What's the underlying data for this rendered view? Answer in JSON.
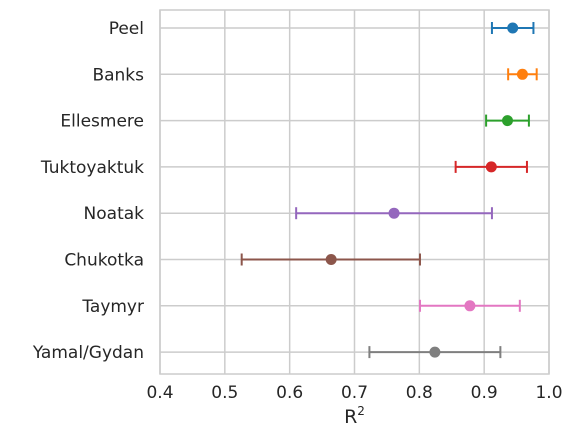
{
  "chart_data": {
    "type": "scatter",
    "orientation": "horizontal-errorbar",
    "xlabel": "R",
    "xlabel_superscript": "2",
    "xlim": [
      0.4,
      1.0
    ],
    "xticks": [
      "0.4",
      "0.5",
      "0.6",
      "0.7",
      "0.8",
      "0.9",
      "1.0"
    ],
    "grid": true,
    "categories": [
      "Peel",
      "Banks",
      "Ellesmere",
      "Tuktoyaktuk",
      "Noatak",
      "Chukotka",
      "Taymyr",
      "Yamal/Gydan"
    ],
    "points": [
      {
        "label": "Peel",
        "value": 0.944,
        "low": 0.912,
        "high": 0.976,
        "color": "#1f77b4"
      },
      {
        "label": "Banks",
        "value": 0.959,
        "low": 0.937,
        "high": 0.981,
        "color": "#ff7f0e"
      },
      {
        "label": "Ellesmere",
        "value": 0.936,
        "low": 0.903,
        "high": 0.969,
        "color": "#2ca02c"
      },
      {
        "label": "Tuktoyaktuk",
        "value": 0.911,
        "low": 0.856,
        "high": 0.966,
        "color": "#d62728"
      },
      {
        "label": "Noatak",
        "value": 0.761,
        "low": 0.61,
        "high": 0.912,
        "color": "#9467bd"
      },
      {
        "label": "Chukotka",
        "value": 0.664,
        "low": 0.526,
        "high": 0.801,
        "color": "#8c564b"
      },
      {
        "label": "Taymyr",
        "value": 0.878,
        "low": 0.801,
        "high": 0.955,
        "color": "#e377c2"
      },
      {
        "label": "Yamal/Gydan",
        "value": 0.824,
        "low": 0.723,
        "high": 0.925,
        "color": "#7f7f7f"
      }
    ]
  }
}
